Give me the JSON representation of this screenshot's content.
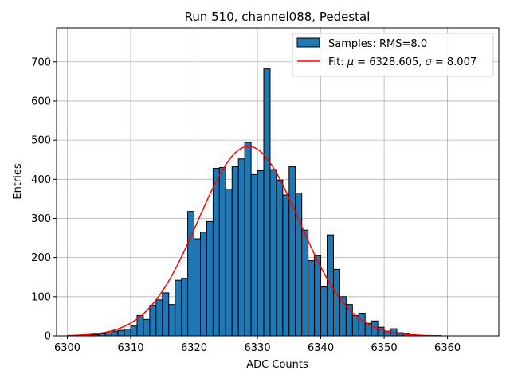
{
  "chart_data": {
    "type": "bar",
    "title": "Run 510, channel088, Pedestal",
    "xlabel": "ADC Counts",
    "ylabel": "Entries",
    "xlim": [
      6298.3,
      6368.1
    ],
    "ylim": [
      0,
      787
    ],
    "xticks": [
      6300,
      6310,
      6320,
      6330,
      6340,
      6350,
      6360
    ],
    "yticks": [
      0,
      100,
      200,
      300,
      400,
      500,
      600,
      700
    ],
    "grid": true,
    "legend_position": "top-right",
    "bin_width": 1,
    "bin_start": [
      6301,
      6302,
      6303,
      6304,
      6305,
      6306,
      6307,
      6308,
      6309,
      6310,
      6311,
      6312,
      6313,
      6314,
      6315,
      6316,
      6317,
      6318,
      6319,
      6320,
      6321,
      6322,
      6323,
      6324,
      6325,
      6326,
      6327,
      6328,
      6329,
      6330,
      6331,
      6332,
      6333,
      6334,
      6335,
      6336,
      6337,
      6338,
      6339,
      6340,
      6341,
      6342,
      6343,
      6344,
      6345,
      6346,
      6347,
      6348,
      6349,
      6350,
      6351,
      6352,
      6353,
      6354,
      6355,
      6356,
      6357,
      6358
    ],
    "counts": [
      1,
      2,
      2,
      3,
      6,
      8,
      12,
      14,
      17,
      25,
      52,
      42,
      78,
      92,
      110,
      80,
      142,
      147,
      318,
      248,
      265,
      292,
      428,
      430,
      375,
      432,
      452,
      494,
      412,
      422,
      682,
      425,
      398,
      360,
      432,
      365,
      270,
      192,
      205,
      125,
      258,
      170,
      100,
      80,
      52,
      58,
      32,
      38,
      22,
      12,
      18,
      8,
      5,
      3,
      2,
      1,
      1,
      1
    ],
    "series": [
      {
        "name": "Samples: RMS=8.0",
        "kind": "histogram",
        "color": "#1f77b4",
        "edge_color": "#000000"
      },
      {
        "name": "Fit: μ = 6328.605, σ = 8.007",
        "kind": "line",
        "color": "#ff0000",
        "mu": 6328.605,
        "sigma": 8.007,
        "amplitude": 484,
        "x_range": [
          6300,
          6359
        ]
      }
    ]
  },
  "legend": {
    "entry_hist": {
      "prefix": "Samples: RMS=8.0"
    },
    "entry_fit": {
      "prefix": "Fit: ",
      "mu_symbol": "μ",
      "mu_text": " = 6328.605, ",
      "sigma_symbol": "σ",
      "sigma_text": " = 8.007"
    }
  }
}
